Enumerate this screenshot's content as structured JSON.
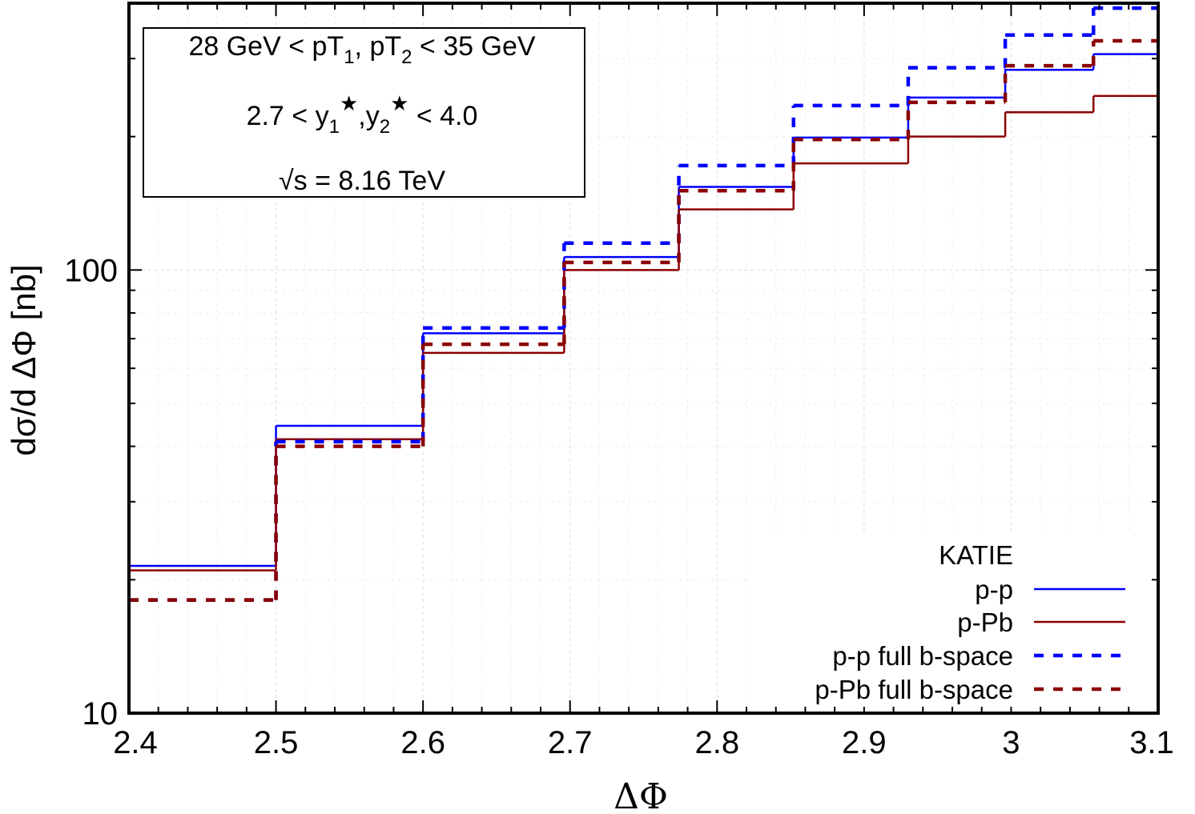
{
  "chart_data": {
    "type": "line",
    "style": "step",
    "xlabel": "ΔΦ",
    "ylabel": "dσ/d ΔΦ [nb]",
    "yscale": "log",
    "xlim": [
      2.4,
      3.1
    ],
    "ylim": [
      10,
      400
    ],
    "xticks": [
      2.4,
      2.5,
      2.6,
      2.7,
      2.8,
      2.9,
      3.0,
      3.1
    ],
    "xtick_labels": [
      "2.4",
      "2.5",
      "2.6",
      "2.7",
      "2.8",
      "2.9",
      "3",
      "3.1"
    ],
    "yticks": [
      10,
      100
    ],
    "ytick_labels": [
      "10",
      "100"
    ],
    "grid": true,
    "bin_edges": [
      2.4,
      2.5,
      2.6,
      2.696,
      2.774,
      2.852,
      2.93,
      2.996,
      3.056,
      3.1
    ],
    "series": [
      {
        "name": "p-p",
        "color": "#0000ff",
        "dash": "solid",
        "values": [
          21.5,
          44.5,
          72,
          107,
          154,
          199,
          245,
          283,
          307
        ]
      },
      {
        "name": "p-Pb",
        "color": "#8b0000",
        "dash": "solid",
        "values": [
          21,
          41.5,
          65,
          100,
          137,
          174,
          200,
          227,
          247
        ]
      },
      {
        "name": "p-p full b-space",
        "color": "#0000ff",
        "dash": "dashed",
        "values": [
          18,
          41,
          74,
          115,
          172,
          235,
          286,
          339,
          390
        ]
      },
      {
        "name": "p-Pb full b-space",
        "color": "#8b0000",
        "dash": "dashed",
        "values": [
          18,
          40,
          68,
          104,
          151,
          197,
          239,
          289,
          329
        ]
      }
    ],
    "legend": {
      "title": "KATIE",
      "placement": "bottom-right"
    },
    "info_box": {
      "placement": "top-left",
      "pt_line": {
        "a": "28 GeV < pT",
        "a_sub": "1",
        "b": ", pT",
        "b_sub": "2",
        "c": " < 35 GeV"
      },
      "y_line": {
        "a": "2.7 < y",
        "a_sub": "1",
        "a_sup": "★",
        "b": ",y",
        "b_sub": "2",
        "b_sup": "★",
        "c": " < 4.0"
      },
      "s_line": {
        "root": "√s",
        "rest": " = 8.16 TeV"
      }
    }
  }
}
